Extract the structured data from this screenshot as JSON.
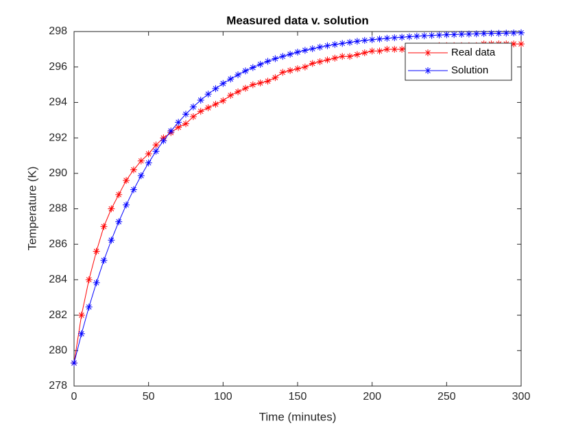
{
  "chart_data": {
    "type": "line",
    "title": "Measured data v. solution",
    "xlabel": "Time (minutes)",
    "ylabel": "Temperature (K)",
    "x": [
      0,
      5,
      10,
      15,
      20,
      25,
      30,
      35,
      40,
      45,
      50,
      55,
      60,
      65,
      70,
      75,
      80,
      85,
      90,
      95,
      100,
      105,
      110,
      115,
      120,
      125,
      130,
      135,
      140,
      145,
      150,
      155,
      160,
      165,
      170,
      175,
      180,
      185,
      190,
      195,
      200,
      205,
      210,
      215,
      220,
      225,
      230,
      235,
      240,
      245,
      250,
      255,
      260,
      265,
      270,
      275,
      280,
      285,
      290,
      295,
      300
    ],
    "series": [
      {
        "name": "Real data",
        "color": "#ff0000",
        "values": [
          279.3,
          282.0,
          284.0,
          285.6,
          287.0,
          288.0,
          288.8,
          289.6,
          290.2,
          290.7,
          291.1,
          291.6,
          292.0,
          292.3,
          292.6,
          292.8,
          293.2,
          293.5,
          293.7,
          293.9,
          294.1,
          294.4,
          294.6,
          294.8,
          295.0,
          295.1,
          295.2,
          295.4,
          295.7,
          295.8,
          295.9,
          296.0,
          296.2,
          296.3,
          296.4,
          296.5,
          296.6,
          296.6,
          296.7,
          296.8,
          296.9,
          296.9,
          297.0,
          297.0,
          297.0,
          297.1,
          297.1,
          297.1,
          297.1,
          297.2,
          297.2,
          297.2,
          297.2,
          297.2,
          297.2,
          297.3,
          297.3,
          297.3,
          297.3,
          297.3,
          297.3
        ]
      },
      {
        "name": "Solution",
        "color": "#0000ff",
        "values": [
          279.3,
          280.95,
          282.46,
          283.83,
          285.09,
          286.23,
          287.27,
          288.22,
          289.08,
          289.87,
          290.59,
          291.25,
          291.84,
          292.39,
          292.88,
          293.34,
          293.75,
          294.13,
          294.47,
          294.78,
          295.07,
          295.32,
          295.56,
          295.78,
          295.97,
          296.15,
          296.32,
          296.47,
          296.6,
          296.72,
          296.84,
          296.94,
          297.03,
          297.12,
          297.2,
          297.27,
          297.33,
          297.39,
          297.45,
          297.5,
          297.54,
          297.58,
          297.62,
          297.65,
          297.68,
          297.71,
          297.74,
          297.76,
          297.78,
          297.8,
          297.82,
          297.83,
          297.85,
          297.86,
          297.87,
          297.89,
          297.9,
          297.9,
          297.91,
          297.92,
          297.93
        ]
      }
    ],
    "xlim": [
      0,
      300
    ],
    "xticks": [
      0,
      50,
      100,
      150,
      200,
      250,
      300
    ],
    "ylim": [
      278,
      298
    ],
    "yticks": [
      278,
      280,
      282,
      284,
      286,
      288,
      290,
      292,
      294,
      296,
      298
    ],
    "legend": "upper right",
    "marker": "*"
  }
}
